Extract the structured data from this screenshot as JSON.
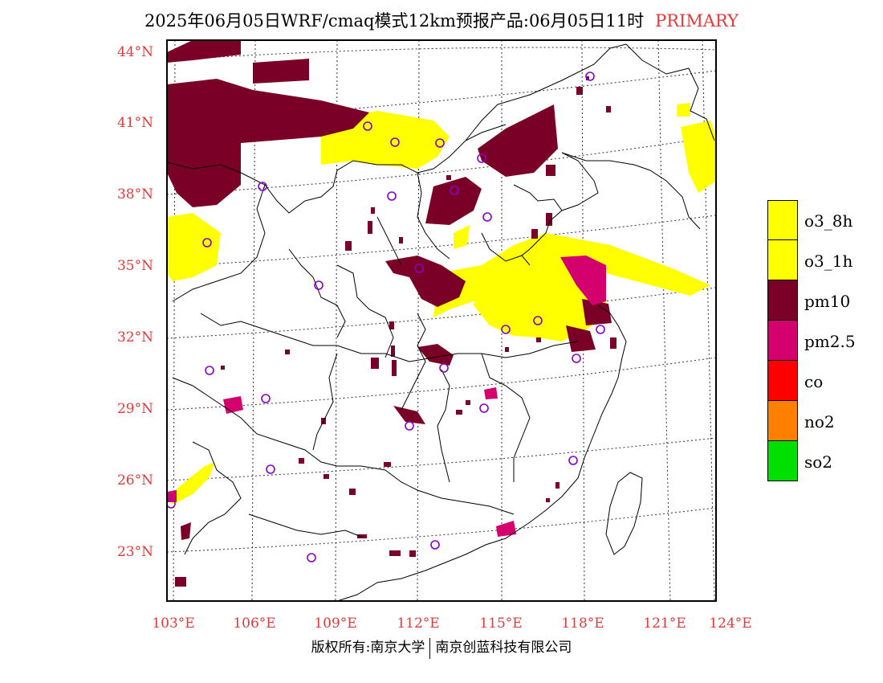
{
  "title": {
    "text": "2025年06月05日WRF/cmaq模式12km预报产品:06月05日11时",
    "tag": "PRIMARY"
  },
  "map": {
    "lat_labels": [
      "44°N",
      "41°N",
      "38°N",
      "35°N",
      "32°N",
      "29°N",
      "26°N",
      "23°N"
    ],
    "lon_labels": [
      "103°E",
      "106°E",
      "109°E",
      "112°E",
      "115°E",
      "118°E",
      "121°E",
      "124°E"
    ]
  },
  "legend": [
    {
      "label": "o3_8h",
      "color": "#ffff00"
    },
    {
      "label": "o3_1h",
      "color": "#ffff00"
    },
    {
      "label": "pm10",
      "color": "#7a0028"
    },
    {
      "label": "pm2.5",
      "color": "#d4006e"
    },
    {
      "label": "co",
      "color": "#ff0000"
    },
    {
      "label": "no2",
      "color": "#ff8000"
    },
    {
      "label": "so2",
      "color": "#00e000"
    }
  ],
  "footer": {
    "left": "版权所有:南京大学",
    "right": "南京创蓝科技有限公司"
  },
  "colors": {
    "label_red": "#e23a3a",
    "o3": "#ffff00",
    "pm10": "#7a0028",
    "pm25": "#d4006e",
    "station": "#8a00c8"
  }
}
